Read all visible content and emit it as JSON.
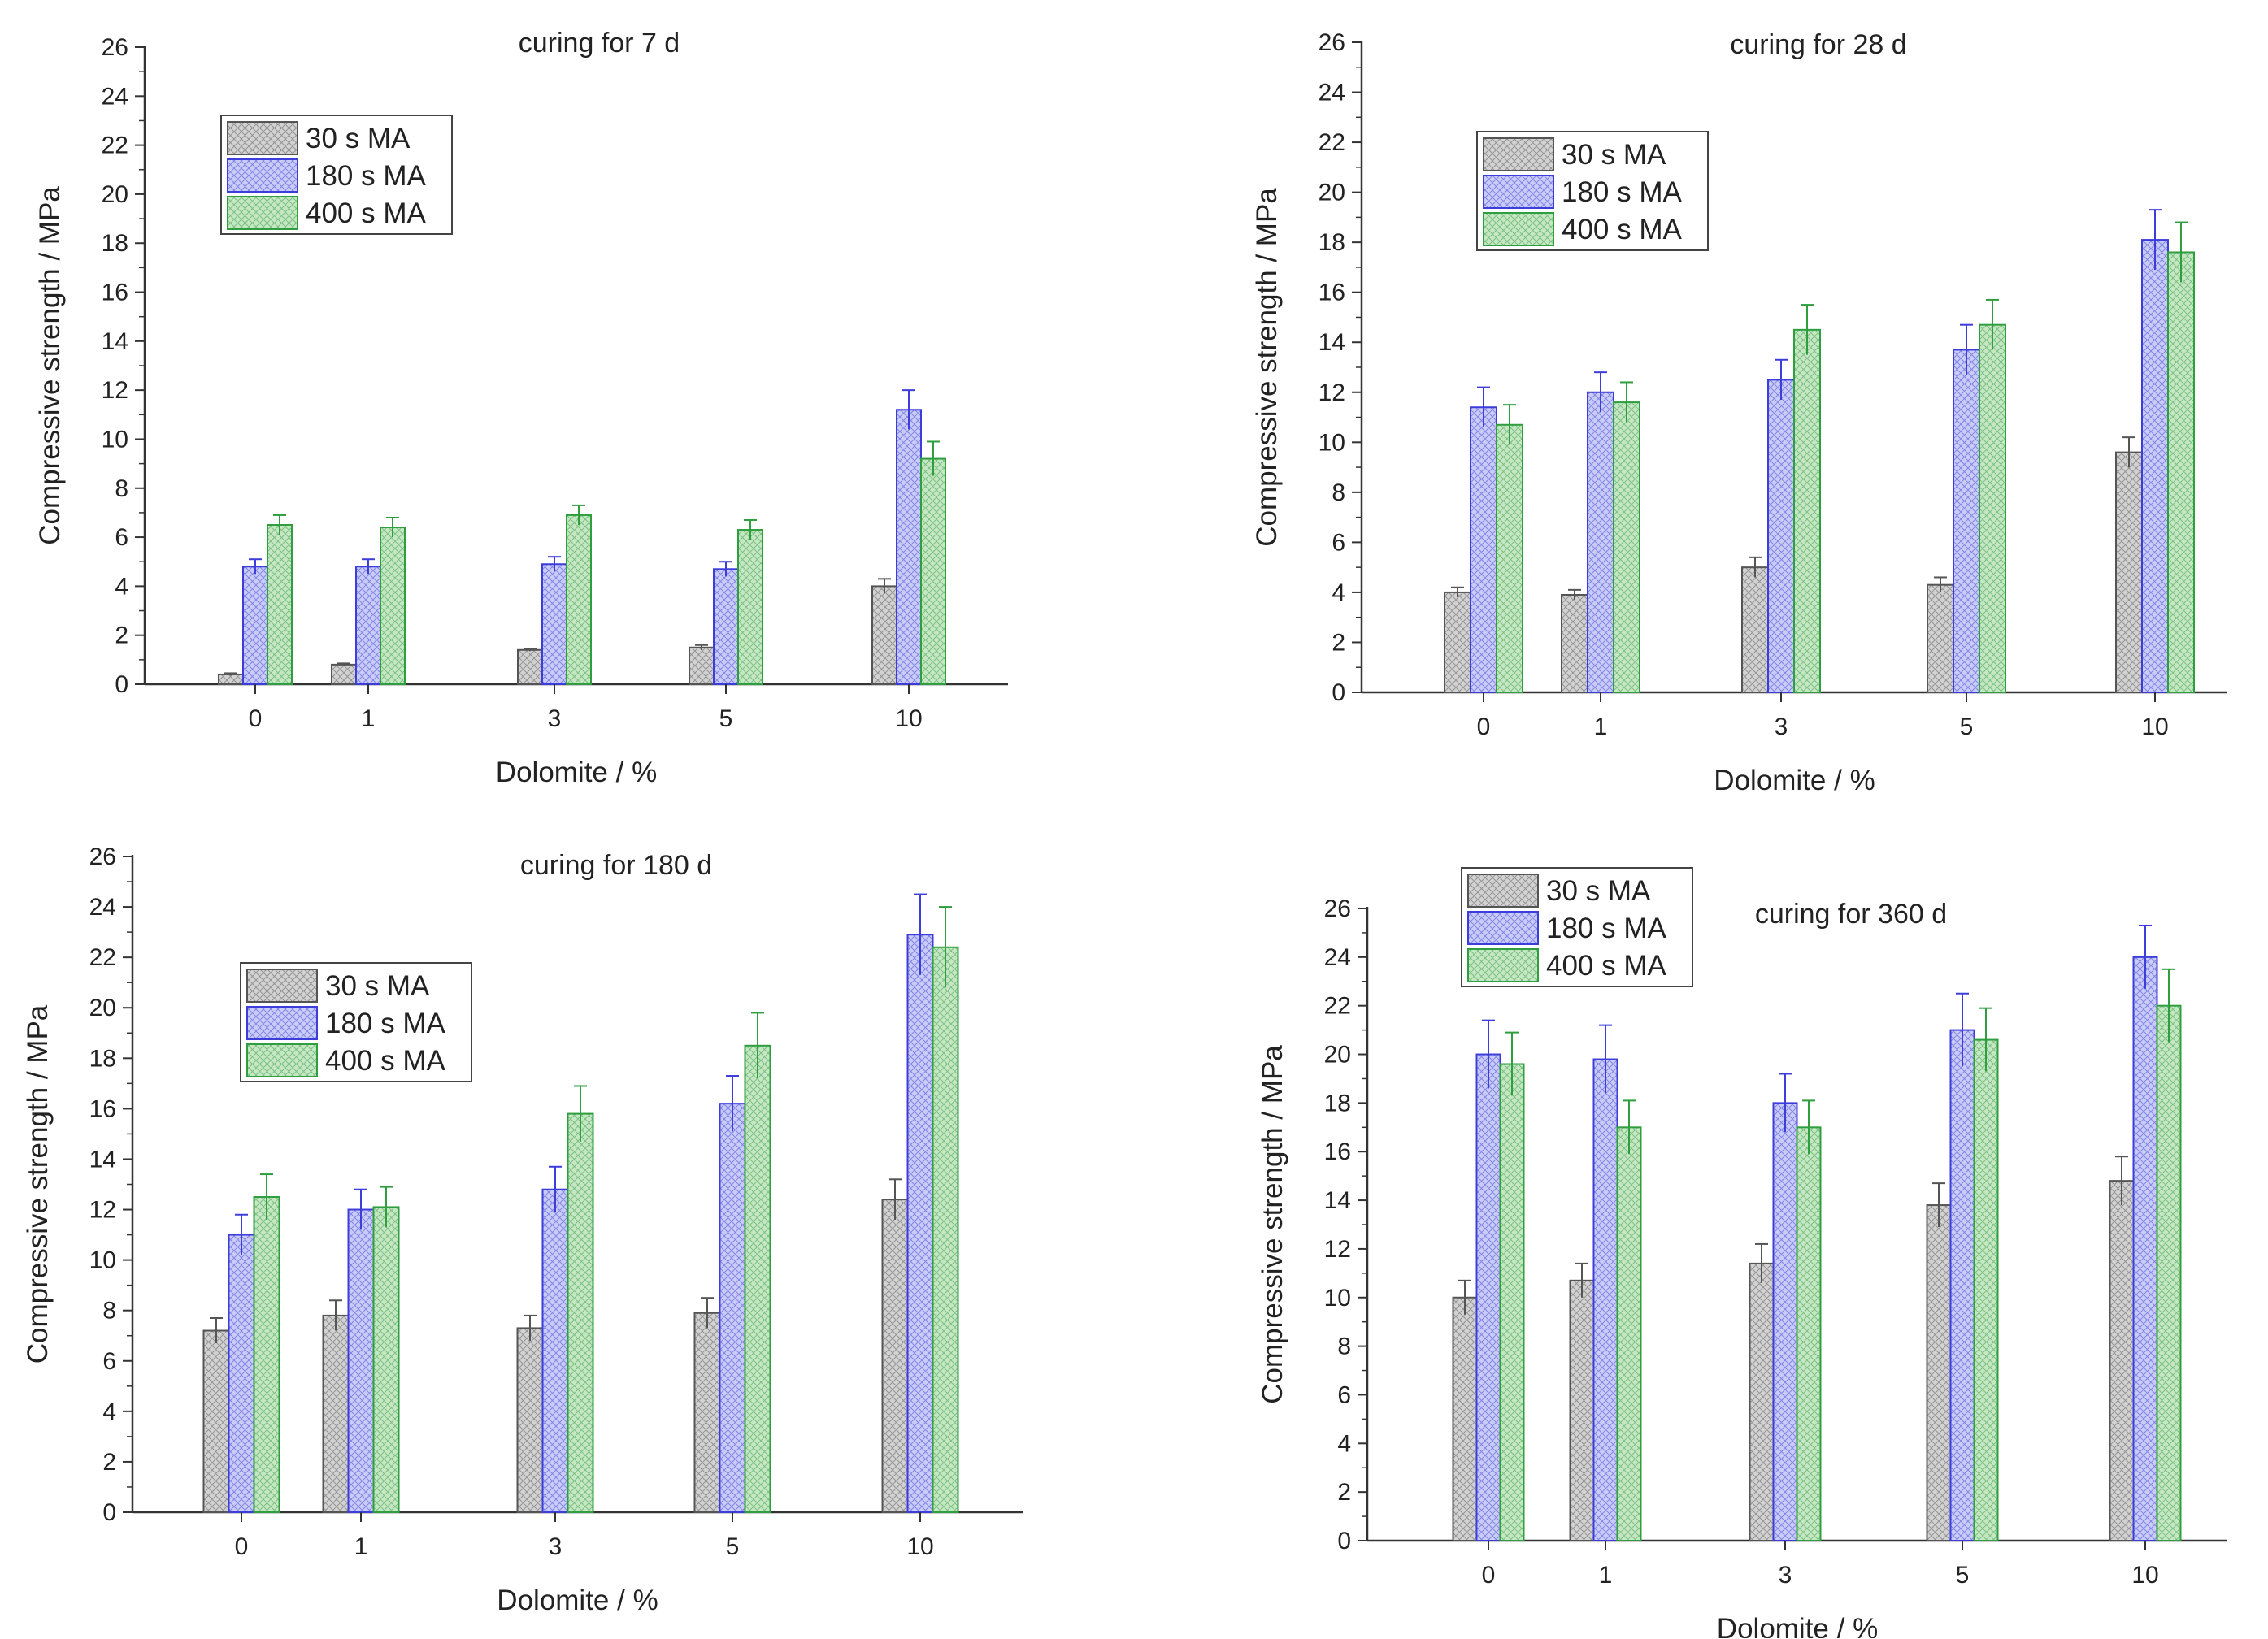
{
  "figure": {
    "series_names": [
      "30 s MA",
      "180 s MA",
      "400 s MA"
    ],
    "colors": {
      "series_0": "#555555",
      "series_1": "#3d3ddb",
      "series_2": "#2e9e3e",
      "series_0_fill": "#d2d2d2",
      "series_1_fill": "#c9ccf6",
      "series_2_fill": "#c6e6c4"
    }
  },
  "chart_data": [
    {
      "type": "bar",
      "title": "curing for 7 d",
      "xlabel": "Dolomite / %",
      "ylabel": "Compressive strength / MPa",
      "categories": [
        "0",
        "1",
        "3",
        "5",
        "10"
      ],
      "ylim": [
        0,
        26
      ],
      "yticks": [
        "0",
        "2",
        "4",
        "6",
        "8",
        "10",
        "12",
        "14",
        "16",
        "18",
        "20",
        "22",
        "24",
        "26"
      ],
      "legend": "top-left",
      "series": [
        {
          "name": "30 s MA",
          "values": [
            0.4,
            0.8,
            1.4,
            1.5,
            4.0
          ],
          "errors": [
            0.05,
            0.05,
            0.05,
            0.1,
            0.3
          ]
        },
        {
          "name": "180 s MA",
          "values": [
            4.8,
            4.8,
            4.9,
            4.7,
            11.2
          ],
          "errors": [
            0.3,
            0.3,
            0.3,
            0.3,
            0.8
          ]
        },
        {
          "name": "400 s MA",
          "values": [
            6.5,
            6.4,
            6.9,
            6.3,
            9.2
          ],
          "errors": [
            0.4,
            0.4,
            0.4,
            0.4,
            0.7
          ]
        }
      ]
    },
    {
      "type": "bar",
      "title": "curing for 28 d",
      "xlabel": "Dolomite / %",
      "ylabel": "Compressive strength / MPa",
      "categories": [
        "0",
        "1",
        "3",
        "5",
        "10"
      ],
      "ylim": [
        0,
        26
      ],
      "yticks": [
        "0",
        "2",
        "4",
        "6",
        "8",
        "10",
        "12",
        "14",
        "16",
        "18",
        "20",
        "22",
        "24",
        "26"
      ],
      "legend": "top-left",
      "series": [
        {
          "name": "30 s MA",
          "values": [
            4.0,
            3.9,
            5.0,
            4.3,
            9.6
          ],
          "errors": [
            0.2,
            0.2,
            0.4,
            0.3,
            0.6
          ]
        },
        {
          "name": "180 s MA",
          "values": [
            11.4,
            12.0,
            12.5,
            13.7,
            18.1
          ],
          "errors": [
            0.8,
            0.8,
            0.8,
            1.0,
            1.2
          ]
        },
        {
          "name": "400 s MA",
          "values": [
            10.7,
            11.6,
            14.5,
            14.7,
            17.6
          ],
          "errors": [
            0.8,
            0.8,
            1.0,
            1.0,
            1.2
          ]
        }
      ]
    },
    {
      "type": "bar",
      "title": "curing for 180 d",
      "xlabel": "Dolomite / %",
      "ylabel": "Compressive strength / MPa",
      "categories": [
        "0",
        "1",
        "3",
        "5",
        "10"
      ],
      "ylim": [
        0,
        26
      ],
      "yticks": [
        "0",
        "2",
        "4",
        "6",
        "8",
        "10",
        "12",
        "14",
        "16",
        "18",
        "20",
        "22",
        "24",
        "26"
      ],
      "legend": "top-left",
      "series": [
        {
          "name": "30 s MA",
          "values": [
            7.2,
            7.8,
            7.3,
            7.9,
            12.4
          ],
          "errors": [
            0.5,
            0.6,
            0.5,
            0.6,
            0.8
          ]
        },
        {
          "name": "180 s MA",
          "values": [
            11.0,
            12.0,
            12.8,
            16.2,
            22.9
          ],
          "errors": [
            0.8,
            0.8,
            0.9,
            1.1,
            1.6
          ]
        },
        {
          "name": "400 s MA",
          "values": [
            12.5,
            12.1,
            15.8,
            18.5,
            22.4
          ],
          "errors": [
            0.9,
            0.8,
            1.1,
            1.3,
            1.6
          ]
        }
      ]
    },
    {
      "type": "bar",
      "title": "curing for 360 d",
      "xlabel": "Dolomite / %",
      "ylabel": "Compressive strength / MPa",
      "categories": [
        "0",
        "1",
        "3",
        "5",
        "10"
      ],
      "ylim": [
        0,
        26
      ],
      "yticks": [
        "0",
        "2",
        "4",
        "6",
        "8",
        "10",
        "12",
        "14",
        "16",
        "18",
        "20",
        "22",
        "24",
        "26"
      ],
      "legend": "top-left",
      "series": [
        {
          "name": "30 s MA",
          "values": [
            10.0,
            10.7,
            11.4,
            13.8,
            14.8
          ],
          "errors": [
            0.7,
            0.7,
            0.8,
            0.9,
            1.0
          ]
        },
        {
          "name": "180 s MA",
          "values": [
            20.0,
            19.8,
            18.0,
            21.0,
            24.0
          ],
          "errors": [
            1.4,
            1.4,
            1.2,
            1.5,
            1.3
          ]
        },
        {
          "name": "400 s MA",
          "values": [
            19.6,
            17.0,
            17.0,
            20.6,
            22.0
          ],
          "errors": [
            1.3,
            1.1,
            1.1,
            1.3,
            1.5
          ]
        }
      ]
    }
  ]
}
